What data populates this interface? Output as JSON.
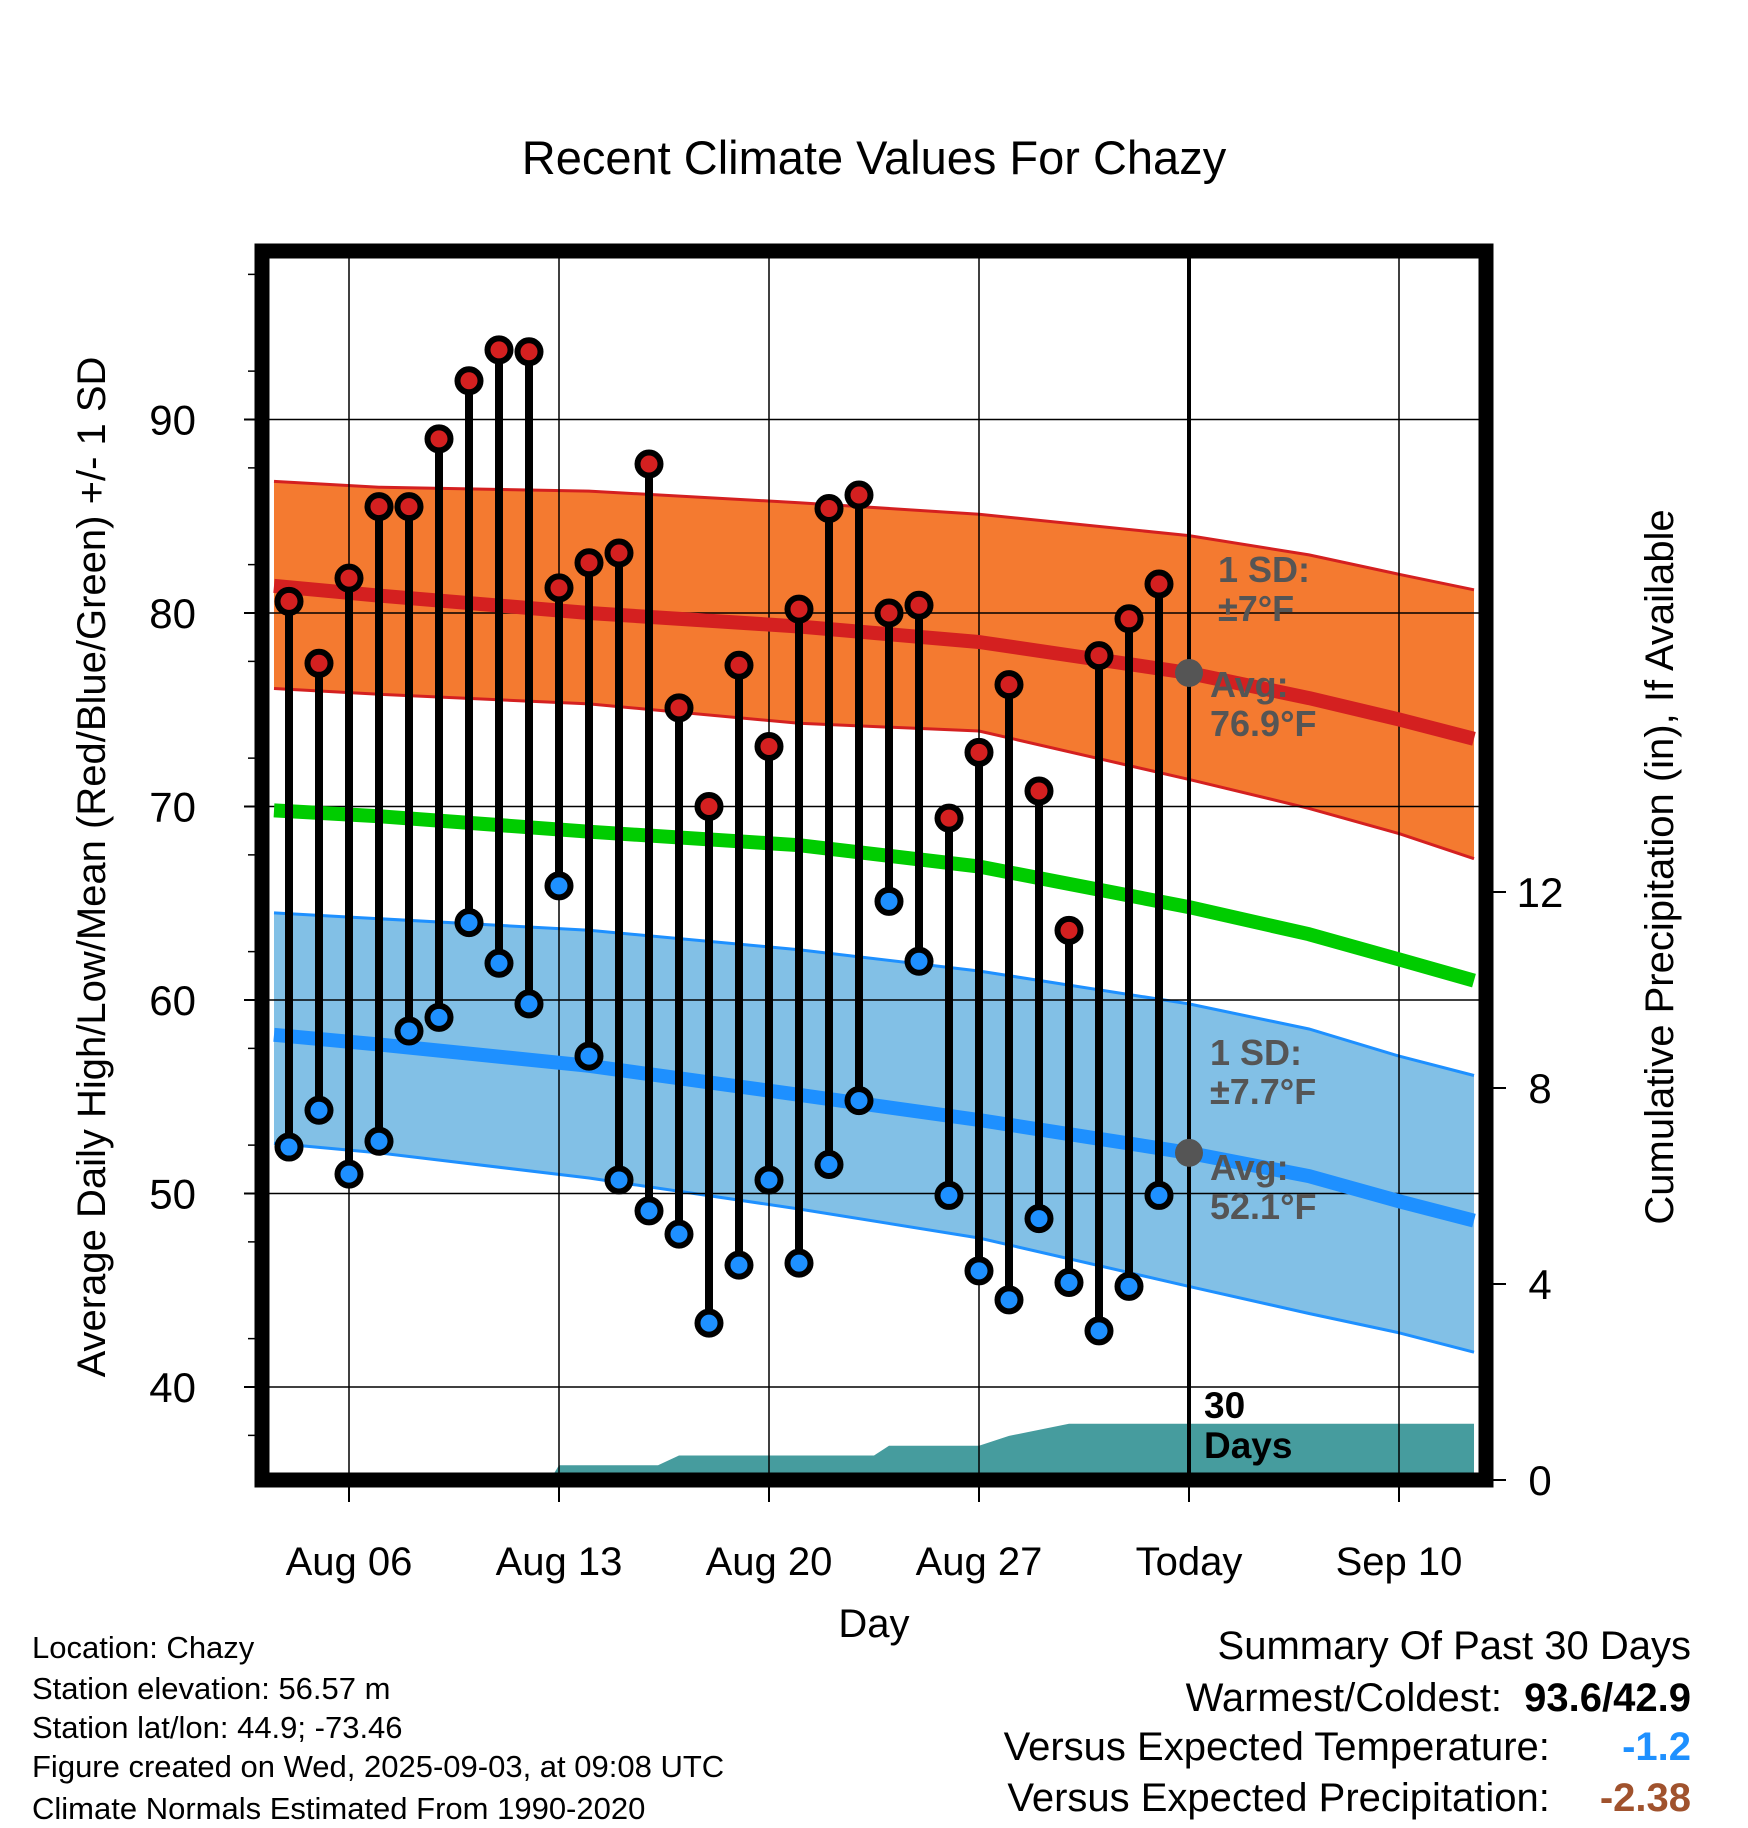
{
  "chart_data": {
    "type": "line",
    "title": "Recent Climate Values For Chazy",
    "xlabel": "Day",
    "ylabel": "Average Daily High/Low/Mean (Red/Blue/Green) +/- 1 SD",
    "y2label": "Cumulative Precipitation (in), If Available",
    "ylim": [
      35.2,
      99
    ],
    "y2lim": [
      0,
      30.4
    ],
    "x_ticks": [
      {
        "day": 6,
        "label": "Aug 06"
      },
      {
        "day": 13,
        "label": "Aug 13"
      },
      {
        "day": 20,
        "label": "Aug 20"
      },
      {
        "day": 27,
        "label": "Aug 27"
      },
      {
        "day": 34,
        "label": "Today"
      },
      {
        "day": 41,
        "label": "Sep 10"
      }
    ],
    "y_ticks": [
      40,
      50,
      60,
      70,
      80,
      90
    ],
    "y2_ticks": [
      0,
      4,
      8,
      12
    ],
    "grid": true,
    "today_day": 34,
    "days": [
      4,
      5,
      6,
      7,
      8,
      9,
      10,
      11,
      12,
      13,
      14,
      15,
      16,
      17,
      18,
      19,
      20,
      21,
      22,
      23,
      24,
      25,
      26,
      27,
      28,
      29,
      30,
      31,
      32,
      33
    ],
    "daily_highs": [
      80.6,
      77.4,
      81.8,
      85.5,
      85.5,
      89.0,
      92.0,
      93.6,
      93.5,
      81.3,
      82.6,
      83.1,
      87.7,
      75.1,
      70.0,
      77.3,
      73.1,
      80.2,
      85.4,
      86.1,
      80.0,
      80.4,
      69.4,
      72.8,
      76.3,
      70.8,
      63.6,
      77.8,
      79.7,
      81.5
    ],
    "daily_lows": [
      52.4,
      54.3,
      51.0,
      52.7,
      58.4,
      59.1,
      64.0,
      61.9,
      59.8,
      65.9,
      57.1,
      50.7,
      49.1,
      47.9,
      43.3,
      46.3,
      50.7,
      46.4,
      51.5,
      54.8,
      65.1,
      62.0,
      49.9,
      46.0,
      44.5,
      48.7,
      45.4,
      42.9,
      45.2,
      49.9
    ],
    "normals": {
      "x": [
        3.5,
        7,
        14,
        21,
        27,
        34,
        38,
        41,
        43.5
      ],
      "high_mean": [
        81.4,
        80.9,
        80.0,
        79.3,
        78.5,
        76.9,
        75.6,
        74.5,
        73.5
      ],
      "high_upper": [
        86.8,
        86.5,
        86.3,
        85.7,
        85.1,
        84.0,
        83.0,
        82.0,
        81.2
      ],
      "high_lower": [
        76.1,
        75.8,
        75.3,
        74.3,
        73.9,
        71.4,
        69.9,
        68.6,
        67.3
      ],
      "mean": [
        69.8,
        69.5,
        68.7,
        68.0,
        66.9,
        64.8,
        63.4,
        62.1,
        61.0
      ],
      "low_mean": [
        58.2,
        57.7,
        56.6,
        55.1,
        53.8,
        52.1,
        50.9,
        49.6,
        48.6
      ],
      "low_upper": [
        64.5,
        64.2,
        63.6,
        62.6,
        61.5,
        59.8,
        58.5,
        57.1,
        56.1
      ],
      "low_lower": [
        52.6,
        52.1,
        50.8,
        49.2,
        47.7,
        45.2,
        43.8,
        42.8,
        41.8
      ]
    },
    "precip_cumulative": {
      "x": [
        3.5,
        12.7,
        13,
        16.3,
        17,
        23.5,
        24,
        27,
        28,
        30,
        43.5
      ],
      "values": [
        0,
        0,
        0.3,
        0.3,
        0.5,
        0.5,
        0.7,
        0.7,
        0.9,
        1.15,
        1.15
      ]
    },
    "annotations": {
      "high_sd": "1 SD:\n±7°F",
      "high_avg": "Avg:\n76.9°F",
      "low_sd": "1 SD:\n±7.7°F",
      "low_avg": "Avg:\n52.1°F",
      "days_label": "30\nDays"
    },
    "colors": {
      "high_band": "#f47a30",
      "high_line": "#d42020",
      "mean_line": "#00cc00",
      "low_band": "#82c0e6",
      "low_line": "#1e90ff",
      "precip": "#469c9e",
      "high_marker": "#d42020",
      "low_marker": "#1e90ff",
      "annotation": "#555555"
    }
  },
  "info": {
    "location": "Location: Chazy",
    "elevation": "Station elevation: 56.57 m",
    "latlon": "Station lat/lon: 44.9; -73.46",
    "created": "Figure created on Wed, 2025-09-03, at 09:08 UTC",
    "normals": "Climate Normals Estimated From 1990-2020"
  },
  "summary": {
    "title": "Summary Of Past 30 Days",
    "warm_cold_label": "Warmest/Coldest:",
    "warm_cold_value": "93.6/42.9",
    "temp_label": "Versus Expected Temperature:",
    "temp_value": "-1.2",
    "temp_color": "#1e90ff",
    "precip_label": "Versus Expected Precipitation:",
    "precip_value": "-2.38",
    "precip_color": "#a0522d"
  }
}
